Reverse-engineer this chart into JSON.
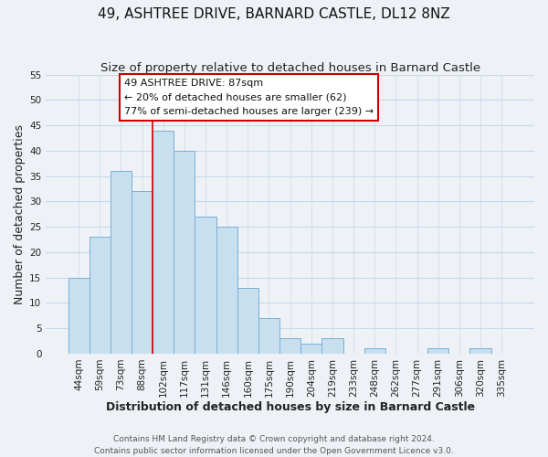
{
  "title": "49, ASHTREE DRIVE, BARNARD CASTLE, DL12 8NZ",
  "subtitle": "Size of property relative to detached houses in Barnard Castle",
  "xlabel": "Distribution of detached houses by size in Barnard Castle",
  "ylabel": "Number of detached properties",
  "footer_line1": "Contains HM Land Registry data © Crown copyright and database right 2024.",
  "footer_line2": "Contains public sector information licensed under the Open Government Licence v3.0.",
  "bar_labels": [
    "44sqm",
    "59sqm",
    "73sqm",
    "88sqm",
    "102sqm",
    "117sqm",
    "131sqm",
    "146sqm",
    "160sqm",
    "175sqm",
    "190sqm",
    "204sqm",
    "219sqm",
    "233sqm",
    "248sqm",
    "262sqm",
    "277sqm",
    "291sqm",
    "306sqm",
    "320sqm",
    "335sqm"
  ],
  "bar_values": [
    15,
    23,
    36,
    32,
    44,
    40,
    27,
    25,
    13,
    7,
    3,
    2,
    3,
    0,
    1,
    0,
    0,
    1,
    0,
    1,
    0
  ],
  "bar_color": "#c8dff0",
  "bar_edge_color": "#7aafd4",
  "grid_color": "#c8d8e8",
  "background_color": "#eef2f7",
  "vline_x": 3.5,
  "vline_color": "#cc0000",
  "ylim": [
    0,
    55
  ],
  "yticks": [
    0,
    5,
    10,
    15,
    20,
    25,
    30,
    35,
    40,
    45,
    50,
    55
  ],
  "annotation_title": "49 ASHTREE DRIVE: 87sqm",
  "annotation_line1": "← 20% of detached houses are smaller (62)",
  "annotation_line2": "77% of semi-detached houses are larger (239) →",
  "annotation_box_color": "#ffffff",
  "annotation_box_edge": "#cc0000",
  "title_fontsize": 11,
  "subtitle_fontsize": 9.5,
  "label_fontsize": 9,
  "tick_fontsize": 7.5,
  "annotation_fontsize": 8,
  "footer_fontsize": 6.5
}
